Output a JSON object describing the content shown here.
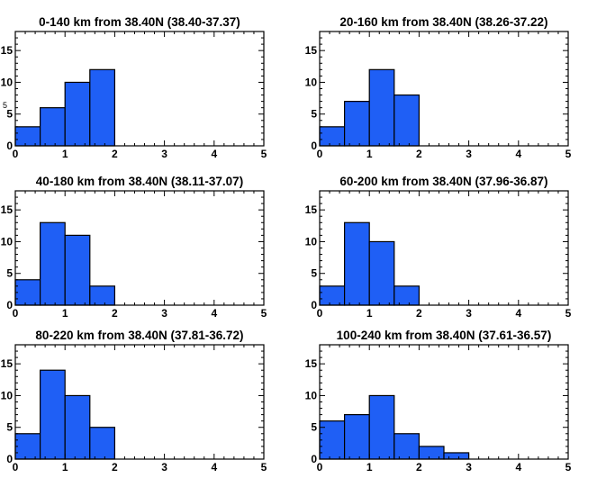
{
  "chart_data": [
    {
      "type": "bar",
      "title": "0-140 km from 38.40N (38.40-37.37)",
      "bin_edges": [
        0,
        0.5,
        1,
        1.5,
        2
      ],
      "values": [
        3,
        6,
        10,
        12
      ],
      "xlim": [
        0,
        5
      ],
      "ylim": [
        0,
        18
      ],
      "xticks": [
        "0",
        "1",
        "2",
        "3",
        "4",
        "5"
      ],
      "yticks": [
        "0",
        "5",
        "10",
        "15"
      ]
    },
    {
      "type": "bar",
      "title": "20-160 km from 38.40N (38.26-37.22)",
      "bin_edges": [
        0,
        0.5,
        1,
        1.5,
        2
      ],
      "values": [
        3,
        7,
        12,
        8
      ],
      "xlim": [
        0,
        5
      ],
      "ylim": [
        0,
        18
      ],
      "xticks": [
        "0",
        "1",
        "2",
        "3",
        "4",
        "5"
      ],
      "yticks": [
        "0",
        "5",
        "10",
        "15"
      ]
    },
    {
      "type": "bar",
      "title": "40-180 km from 38.40N (38.11-37.07)",
      "bin_edges": [
        0,
        0.5,
        1,
        1.5,
        2
      ],
      "values": [
        4,
        13,
        11,
        3
      ],
      "xlim": [
        0,
        5
      ],
      "ylim": [
        0,
        18
      ],
      "xticks": [
        "0",
        "1",
        "2",
        "3",
        "4",
        "5"
      ],
      "yticks": [
        "0",
        "5",
        "10",
        "15"
      ]
    },
    {
      "type": "bar",
      "title": "60-200 km from 38.40N (37.96-36.87)",
      "bin_edges": [
        0,
        0.5,
        1,
        1.5,
        2
      ],
      "values": [
        3,
        13,
        10,
        3
      ],
      "xlim": [
        0,
        5
      ],
      "ylim": [
        0,
        18
      ],
      "xticks": [
        "0",
        "1",
        "2",
        "3",
        "4",
        "5"
      ],
      "yticks": [
        "0",
        "5",
        "10",
        "15"
      ]
    },
    {
      "type": "bar",
      "title": "80-220 km from 38.40N (37.81-36.72)",
      "bin_edges": [
        0,
        0.5,
        1,
        1.5,
        2
      ],
      "values": [
        4,
        14,
        10,
        5
      ],
      "xlim": [
        0,
        5
      ],
      "ylim": [
        0,
        18
      ],
      "xticks": [
        "0",
        "1",
        "2",
        "3",
        "4",
        "5"
      ],
      "yticks": [
        "0",
        "5",
        "10",
        "15"
      ]
    },
    {
      "type": "bar",
      "title": "100-240 km from 38.40N (37.61-36.57)",
      "bin_edges": [
        0,
        0.5,
        1,
        1.5,
        2,
        2.5,
        3
      ],
      "values": [
        6,
        7,
        10,
        4,
        2,
        1
      ],
      "xlim": [
        0,
        5
      ],
      "ylim": [
        0,
        18
      ],
      "xticks": [
        "0",
        "1",
        "2",
        "3",
        "4",
        "5"
      ],
      "yticks": [
        "0",
        "5",
        "10",
        "15"
      ]
    }
  ],
  "colors": {
    "bar_fill": "#1f5ff5",
    "bar_stroke": "#000000",
    "axis": "#000000"
  },
  "stray_mark": "5"
}
